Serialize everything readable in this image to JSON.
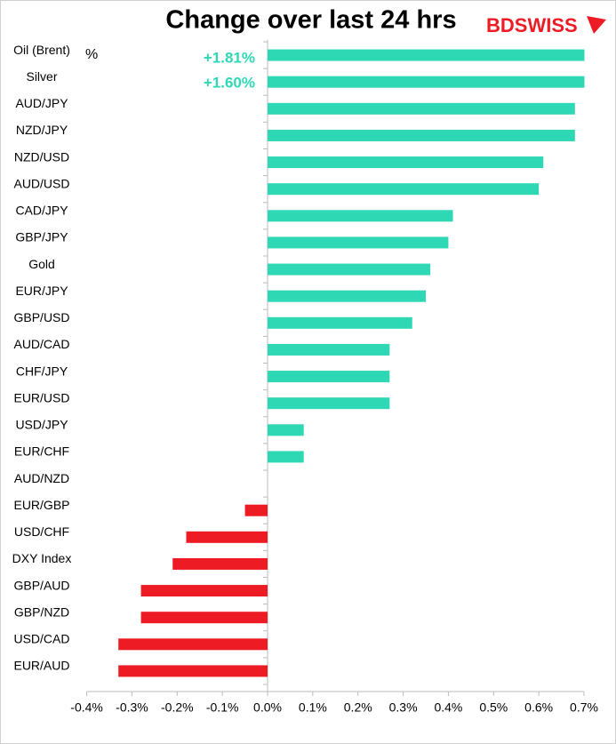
{
  "chart_data": {
    "type": "barh",
    "title": "Change over last 24 hrs",
    "unit_label": "%",
    "logo": "BDSWISS",
    "categories": [
      "Oil (Brent)",
      "Silver",
      "AUD/JPY",
      "NZD/JPY",
      "NZD/USD",
      "AUD/USD",
      "CAD/JPY",
      "GBP/JPY",
      "Gold",
      "EUR/JPY",
      "GBP/USD",
      "AUD/CAD",
      "CHF/JPY",
      "EUR/USD",
      "USD/JPY",
      "EUR/CHF",
      "AUD/NZD",
      "EUR/GBP",
      "USD/CHF",
      "DXY Index",
      "GBP/AUD",
      "GBP/NZD",
      "USD/CAD",
      "EUR/AUD"
    ],
    "values": [
      1.81,
      1.6,
      0.68,
      0.68,
      0.61,
      0.6,
      0.41,
      0.4,
      0.36,
      0.35,
      0.32,
      0.27,
      0.27,
      0.27,
      0.08,
      0.08,
      0,
      -0.05,
      -0.18,
      -0.21,
      -0.28,
      -0.28,
      -0.33,
      -0.33
    ],
    "value_labels": [
      "+1.81%",
      "+1.60%",
      null,
      null,
      null,
      null,
      null,
      null,
      null,
      null,
      null,
      null,
      null,
      null,
      null,
      null,
      null,
      null,
      null,
      null,
      null,
      null,
      null,
      null
    ],
    "colors": {
      "positive": "#2ed8b4",
      "negative": "#ed1c24"
    },
    "xlim": [
      -0.4,
      0.7
    ],
    "xticks": [
      {
        "value": -0.4,
        "label": "-0.4%"
      },
      {
        "value": -0.3,
        "label": "-0.3%"
      },
      {
        "value": -0.2,
        "label": "-0.2%"
      },
      {
        "value": -0.1,
        "label": "-0.1%"
      },
      {
        "value": 0,
        "label": "0.0%"
      },
      {
        "value": 0.1,
        "label": "0.1%"
      },
      {
        "value": 0.2,
        "label": "0.2%"
      },
      {
        "value": 0.3,
        "label": "0.3%"
      },
      {
        "value": 0.4,
        "label": "0.4%"
      },
      {
        "value": 0.5,
        "label": "0.5%"
      },
      {
        "value": 0.6,
        "label": "0.6%"
      },
      {
        "value": 0.7,
        "label": "0.7%"
      }
    ],
    "grid": false
  }
}
